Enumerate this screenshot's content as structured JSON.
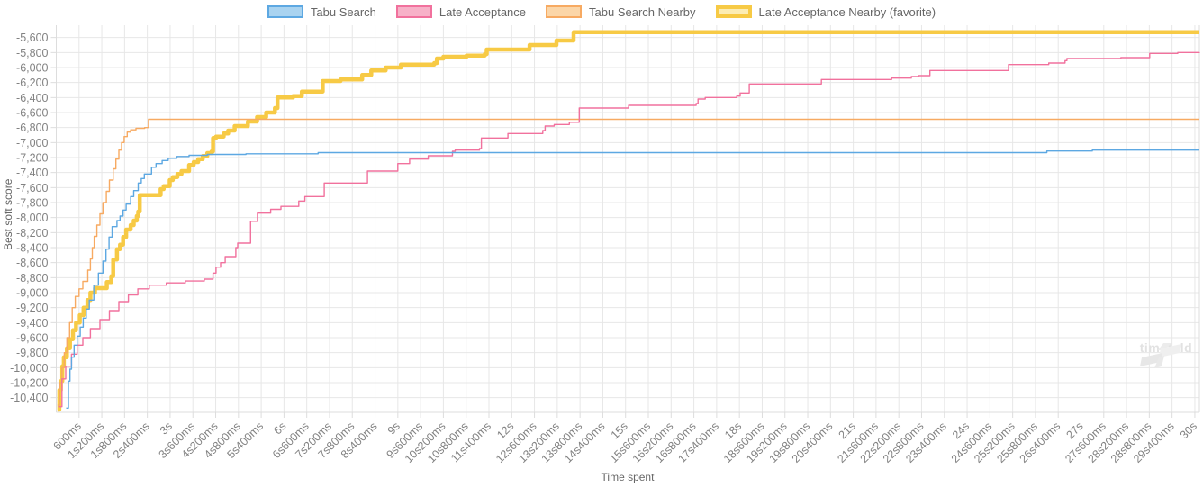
{
  "watermark": {
    "text": "timefold"
  },
  "chart_data": {
    "type": "line",
    "stepped": true,
    "title": "",
    "xlabel": "Time spent",
    "ylabel": "Best soft score",
    "legend_position": "top",
    "grid": true,
    "xlim_ms": [
      0,
      30120
    ],
    "ylim": [
      -10596,
      -5436
    ],
    "x_axis": {
      "tick_interval_ms": 600,
      "tick_labels": [
        "600ms",
        "1s200ms",
        "1s800ms",
        "2s400ms",
        "3s",
        "3s600ms",
        "4s200ms",
        "4s800ms",
        "5s400ms",
        "6s",
        "6s600ms",
        "7s200ms",
        "7s800ms",
        "8s400ms",
        "9s",
        "9s600ms",
        "10s200ms",
        "10s800ms",
        "11s400ms",
        "12s",
        "12s600ms",
        "13s200ms",
        "13s800ms",
        "14s400ms",
        "15s",
        "15s600ms",
        "16s200ms",
        "16s800ms",
        "17s400ms",
        "18s",
        "18s600ms",
        "19s200ms",
        "19s800ms",
        "20s400ms",
        "21s",
        "21s600ms",
        "22s200ms",
        "22s800ms",
        "23s400ms",
        "24s",
        "24s600ms",
        "25s200ms",
        "25s800ms",
        "26s400ms",
        "27s",
        "27s600ms",
        "28s200ms",
        "28s800ms",
        "29s400ms",
        "30s"
      ]
    },
    "y_axis": {
      "ticks": [
        -5600,
        -5800,
        -6000,
        -6200,
        -6400,
        -6600,
        -6800,
        -7000,
        -7200,
        -7400,
        -7600,
        -7800,
        -8000,
        -8200,
        -8400,
        -8600,
        -8800,
        -9000,
        -9200,
        -9400,
        -9600,
        -9800,
        -10000,
        -10200,
        -10400
      ]
    },
    "colors": {
      "grid": "#e7e7e7",
      "axis_line": "#dddddd",
      "tick_text": "#828282",
      "axis_title_text": "#666666",
      "legend_text": "#666666"
    },
    "series": [
      {
        "name": "Tabu Search",
        "color": "#5da8e2",
        "fill": "#a9d3f0",
        "line_width": 1.4,
        "points": [
          [
            260,
            -10540
          ],
          [
            320,
            -10180
          ],
          [
            360,
            -10020
          ],
          [
            400,
            -9860
          ],
          [
            470,
            -9700
          ],
          [
            550,
            -9580
          ],
          [
            630,
            -9460
          ],
          [
            710,
            -9340
          ],
          [
            790,
            -9220
          ],
          [
            870,
            -9100
          ],
          [
            990,
            -8900
          ],
          [
            1110,
            -8740
          ],
          [
            1230,
            -8580
          ],
          [
            1310,
            -8420
          ],
          [
            1390,
            -8260
          ],
          [
            1470,
            -8120
          ],
          [
            1600,
            -8040
          ],
          [
            1680,
            -7980
          ],
          [
            1760,
            -7900
          ],
          [
            1840,
            -7820
          ],
          [
            1960,
            -7720
          ],
          [
            2040,
            -7640
          ],
          [
            2160,
            -7540
          ],
          [
            2240,
            -7480
          ],
          [
            2320,
            -7420
          ],
          [
            2510,
            -7330
          ],
          [
            2630,
            -7280
          ],
          [
            2790,
            -7240
          ],
          [
            2950,
            -7210
          ],
          [
            3180,
            -7186
          ],
          [
            3500,
            -7170
          ],
          [
            3980,
            -7158
          ],
          [
            5000,
            -7150
          ],
          [
            6900,
            -7134
          ],
          [
            26100,
            -7112
          ],
          [
            27300,
            -7100
          ],
          [
            30120,
            -7100
          ]
        ]
      },
      {
        "name": "Late Acceptance",
        "color": "#f1719d",
        "fill": "#f7b1c8",
        "line_width": 1.4,
        "points": [
          [
            50,
            -10520
          ],
          [
            150,
            -10150
          ],
          [
            250,
            -9980
          ],
          [
            400,
            -9820
          ],
          [
            550,
            -9700
          ],
          [
            700,
            -9600
          ],
          [
            900,
            -9480
          ],
          [
            1150,
            -9360
          ],
          [
            1400,
            -9240
          ],
          [
            1650,
            -9120
          ],
          [
            1900,
            -9030
          ],
          [
            2150,
            -8950
          ],
          [
            2450,
            -8900
          ],
          [
            2900,
            -8870
          ],
          [
            3400,
            -8845
          ],
          [
            3900,
            -8820
          ],
          [
            4130,
            -8740
          ],
          [
            4210,
            -8660
          ],
          [
            4330,
            -8600
          ],
          [
            4450,
            -8520
          ],
          [
            4730,
            -8400
          ],
          [
            4780,
            -8340
          ],
          [
            5120,
            -8050
          ],
          [
            5300,
            -7940
          ],
          [
            5650,
            -7890
          ],
          [
            5920,
            -7850
          ],
          [
            6390,
            -7780
          ],
          [
            6550,
            -7720
          ],
          [
            7060,
            -7540
          ],
          [
            8200,
            -7380
          ],
          [
            9000,
            -7280
          ],
          [
            9310,
            -7220
          ],
          [
            9800,
            -7176
          ],
          [
            10440,
            -7116
          ],
          [
            10510,
            -7100
          ],
          [
            11150,
            -7080
          ],
          [
            11200,
            -6940
          ],
          [
            11900,
            -6880
          ],
          [
            12820,
            -6840
          ],
          [
            12880,
            -6780
          ],
          [
            13120,
            -6760
          ],
          [
            13520,
            -6730
          ],
          [
            13780,
            -6540
          ],
          [
            15080,
            -6504
          ],
          [
            16860,
            -6480
          ],
          [
            16910,
            -6420
          ],
          [
            17100,
            -6400
          ],
          [
            17930,
            -6380
          ],
          [
            18020,
            -6340
          ],
          [
            18260,
            -6220
          ],
          [
            20160,
            -6160
          ],
          [
            22010,
            -6140
          ],
          [
            22530,
            -6120
          ],
          [
            22720,
            -6108
          ],
          [
            23020,
            -6040
          ],
          [
            25090,
            -5960
          ],
          [
            26150,
            -5940
          ],
          [
            26580,
            -5908
          ],
          [
            26630,
            -5880
          ],
          [
            28050,
            -5868
          ],
          [
            28810,
            -5812
          ],
          [
            29550,
            -5800
          ],
          [
            30120,
            -5795
          ]
        ]
      },
      {
        "name": "Tabu Search Nearby",
        "color": "#f7aa62",
        "fill": "#fbd6a8",
        "line_width": 1.4,
        "points": [
          [
            30,
            -10500
          ],
          [
            90,
            -10200
          ],
          [
            150,
            -10000
          ],
          [
            210,
            -9800
          ],
          [
            280,
            -9600
          ],
          [
            350,
            -9400
          ],
          [
            420,
            -9200
          ],
          [
            500,
            -9050
          ],
          [
            600,
            -8950
          ],
          [
            700,
            -8850
          ],
          [
            830,
            -8700
          ],
          [
            900,
            -8550
          ],
          [
            950,
            -8400
          ],
          [
            1000,
            -8250
          ],
          [
            1070,
            -8100
          ],
          [
            1150,
            -7950
          ],
          [
            1230,
            -7800
          ],
          [
            1320,
            -7650
          ],
          [
            1400,
            -7500
          ],
          [
            1500,
            -7350
          ],
          [
            1570,
            -7220
          ],
          [
            1650,
            -7100
          ],
          [
            1720,
            -7000
          ],
          [
            1790,
            -6920
          ],
          [
            1870,
            -6860
          ],
          [
            1960,
            -6830
          ],
          [
            2100,
            -6810
          ],
          [
            2330,
            -6800
          ],
          [
            2430,
            -6690
          ],
          [
            30120,
            -6690
          ]
        ]
      },
      {
        "name": "Late Acceptance Nearby (favorite)",
        "color": "#f7ca45",
        "fill": "#fcedb4",
        "line_width": 4.5,
        "points": [
          [
            30,
            -10560
          ],
          [
            80,
            -10300
          ],
          [
            120,
            -10180
          ],
          [
            160,
            -9980
          ],
          [
            200,
            -9860
          ],
          [
            280,
            -9740
          ],
          [
            360,
            -9620
          ],
          [
            440,
            -9500
          ],
          [
            520,
            -9400
          ],
          [
            620,
            -9300
          ],
          [
            720,
            -9200
          ],
          [
            820,
            -9100
          ],
          [
            900,
            -9000
          ],
          [
            1020,
            -8940
          ],
          [
            1330,
            -8860
          ],
          [
            1450,
            -8780
          ],
          [
            1500,
            -8560
          ],
          [
            1600,
            -8420
          ],
          [
            1680,
            -8360
          ],
          [
            1760,
            -8260
          ],
          [
            1840,
            -8160
          ],
          [
            1960,
            -8100
          ],
          [
            2040,
            -8040
          ],
          [
            2120,
            -7980
          ],
          [
            2160,
            -7920
          ],
          [
            2200,
            -7700
          ],
          [
            2750,
            -7620
          ],
          [
            2830,
            -7580
          ],
          [
            2990,
            -7500
          ],
          [
            3070,
            -7460
          ],
          [
            3190,
            -7420
          ],
          [
            3300,
            -7380
          ],
          [
            3500,
            -7300
          ],
          [
            3620,
            -7260
          ],
          [
            3740,
            -7220
          ],
          [
            3860,
            -7180
          ],
          [
            3980,
            -7140
          ],
          [
            4090,
            -7120
          ],
          [
            4130,
            -6940
          ],
          [
            4210,
            -6920
          ],
          [
            4410,
            -6880
          ],
          [
            4530,
            -6840
          ],
          [
            4700,
            -6780
          ],
          [
            5050,
            -6720
          ],
          [
            5290,
            -6660
          ],
          [
            5530,
            -6600
          ],
          [
            5760,
            -6540
          ],
          [
            5830,
            -6400
          ],
          [
            6240,
            -6380
          ],
          [
            6470,
            -6320
          ],
          [
            7020,
            -6180
          ],
          [
            7490,
            -6160
          ],
          [
            8060,
            -6100
          ],
          [
            8300,
            -6040
          ],
          [
            8680,
            -6000
          ],
          [
            9080,
            -5960
          ],
          [
            9960,
            -5940
          ],
          [
            10030,
            -5880
          ],
          [
            10200,
            -5856
          ],
          [
            10810,
            -5840
          ],
          [
            11290,
            -5820
          ],
          [
            11340,
            -5760
          ],
          [
            12470,
            -5700
          ],
          [
            13180,
            -5640
          ],
          [
            13630,
            -5530
          ],
          [
            30120,
            -5530
          ]
        ]
      }
    ]
  }
}
